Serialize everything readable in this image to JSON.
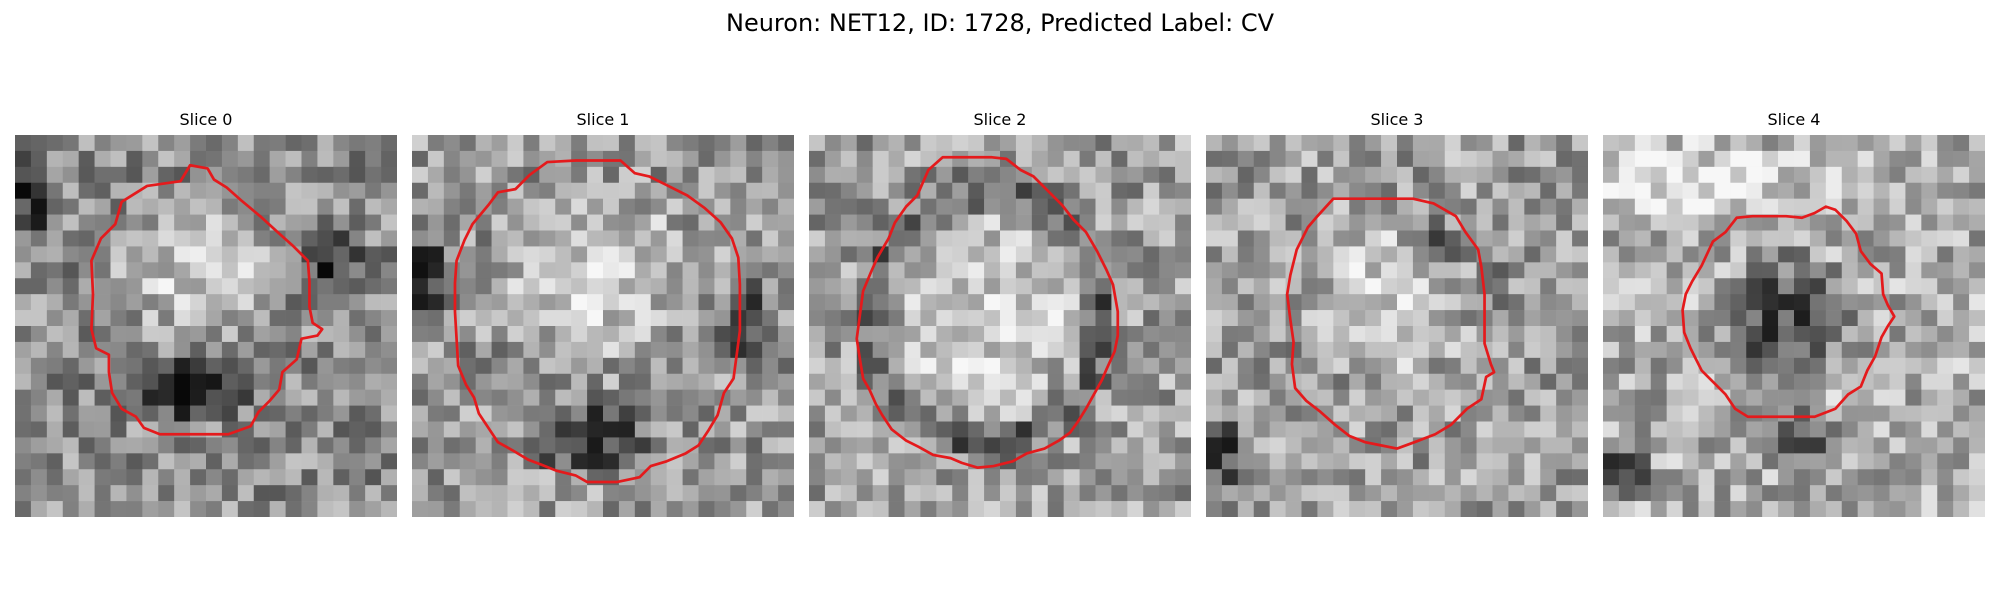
{
  "figure": {
    "title": "Neuron: NET12, ID: 1728, Predicted Label: CV",
    "contour_color": "#e41a1c",
    "panels": [
      {
        "title": "Slice 0",
        "contour": [
          [
            11,
            1.9
          ],
          [
            10.4,
            2.9
          ],
          [
            8.3,
            3.2
          ],
          [
            6.7,
            4.2
          ],
          [
            6.3,
            5.6
          ],
          [
            5.4,
            6.5
          ],
          [
            4.8,
            7.9
          ],
          [
            4.9,
            10.0
          ],
          [
            4.8,
            12.2
          ],
          [
            5.1,
            13.4
          ],
          [
            5.9,
            13.8
          ],
          [
            5.9,
            14.9
          ],
          [
            6.1,
            16.2
          ],
          [
            6.7,
            17.2
          ],
          [
            7.6,
            17.7
          ],
          [
            8.1,
            18.4
          ],
          [
            9.1,
            18.8
          ],
          [
            13.4,
            18.8
          ],
          [
            14.8,
            18.3
          ],
          [
            15.3,
            17.4
          ],
          [
            16.0,
            16.7
          ],
          [
            16.6,
            16.0
          ],
          [
            16.8,
            14.9
          ],
          [
            17.7,
            14.1
          ],
          [
            18.0,
            12.8
          ],
          [
            19.0,
            12.6
          ],
          [
            19.3,
            12.2
          ],
          [
            18.7,
            11.8
          ],
          [
            18.5,
            10.8
          ],
          [
            18.5,
            9.2
          ],
          [
            18.4,
            7.9
          ],
          [
            17.5,
            7.0
          ],
          [
            16.5,
            6.1
          ],
          [
            15.4,
            5.1
          ],
          [
            14.2,
            4.1
          ],
          [
            13.3,
            3.3
          ],
          [
            12.5,
            2.8
          ],
          [
            12.1,
            2.1
          ]
        ]
      },
      {
        "title": "Slice 1",
        "contour": [
          [
            6.5,
            3.4
          ],
          [
            7.4,
            2.5
          ],
          [
            8.5,
            1.7
          ],
          [
            10.3,
            1.6
          ],
          [
            11.9,
            1.6
          ],
          [
            13.1,
            1.6
          ],
          [
            14.0,
            2.4
          ],
          [
            14.9,
            2.6
          ],
          [
            15.9,
            3.1
          ],
          [
            17.3,
            3.8
          ],
          [
            18.4,
            4.6
          ],
          [
            19.4,
            5.5
          ],
          [
            20.1,
            6.5
          ],
          [
            20.5,
            7.7
          ],
          [
            20.6,
            9.4
          ],
          [
            20.6,
            11.3
          ],
          [
            20.6,
            12.3
          ],
          [
            20.4,
            13.8
          ],
          [
            20.2,
            15.3
          ],
          [
            19.6,
            16.2
          ],
          [
            19.2,
            17.6
          ],
          [
            18.6,
            18.6
          ],
          [
            18.0,
            19.5
          ],
          [
            17.2,
            20.0
          ],
          [
            16.0,
            20.5
          ],
          [
            15.0,
            20.8
          ],
          [
            14.3,
            21.5
          ],
          [
            12.9,
            21.8
          ],
          [
            11.0,
            21.8
          ],
          [
            10.3,
            21.4
          ],
          [
            9.1,
            21.1
          ],
          [
            8.1,
            20.7
          ],
          [
            7.3,
            20.4
          ],
          [
            6.3,
            19.8
          ],
          [
            5.4,
            19.3
          ],
          [
            4.8,
            18.4
          ],
          [
            4.2,
            17.5
          ],
          [
            3.9,
            16.5
          ],
          [
            3.4,
            15.7
          ],
          [
            2.9,
            14.5
          ],
          [
            2.8,
            12.8
          ],
          [
            2.7,
            11.1
          ],
          [
            2.7,
            9.3
          ],
          [
            2.8,
            7.9
          ],
          [
            3.3,
            6.6
          ],
          [
            3.8,
            5.6
          ],
          [
            4.8,
            4.4
          ],
          [
            5.4,
            3.6
          ]
        ]
      },
      {
        "title": "Slice 2",
        "contour": [
          [
            7.5,
            2.2
          ],
          [
            8.4,
            1.4
          ],
          [
            9.5,
            1.4
          ],
          [
            10.5,
            1.4
          ],
          [
            11.5,
            1.4
          ],
          [
            12.4,
            1.5
          ],
          [
            13.3,
            2.2
          ],
          [
            14.1,
            2.6
          ],
          [
            15.0,
            3.5
          ],
          [
            15.9,
            4.4
          ],
          [
            16.6,
            5.3
          ],
          [
            17.4,
            6.1
          ],
          [
            18.1,
            7.3
          ],
          [
            18.7,
            8.5
          ],
          [
            19.1,
            9.4
          ],
          [
            19.4,
            11.1
          ],
          [
            19.4,
            12.6
          ],
          [
            19.2,
            13.6
          ],
          [
            18.7,
            14.7
          ],
          [
            18.4,
            15.4
          ],
          [
            17.9,
            16.3
          ],
          [
            17.4,
            17.2
          ],
          [
            16.9,
            18.0
          ],
          [
            16.4,
            18.7
          ],
          [
            15.7,
            19.2
          ],
          [
            14.8,
            19.7
          ],
          [
            13.7,
            20.0
          ],
          [
            12.8,
            20.5
          ],
          [
            11.6,
            20.8
          ],
          [
            10.6,
            20.9
          ],
          [
            9.6,
            20.6
          ],
          [
            8.9,
            20.3
          ],
          [
            7.8,
            20.1
          ],
          [
            6.9,
            19.6
          ],
          [
            6.1,
            19.2
          ],
          [
            5.2,
            18.5
          ],
          [
            4.6,
            17.6
          ],
          [
            4.2,
            16.9
          ],
          [
            3.8,
            16.0
          ],
          [
            3.4,
            15.3
          ],
          [
            3.2,
            14.1
          ],
          [
            3.0,
            12.8
          ],
          [
            3.2,
            11.3
          ],
          [
            3.4,
            9.8
          ],
          [
            3.9,
            8.6
          ],
          [
            4.3,
            7.7
          ],
          [
            5.0,
            6.5
          ],
          [
            5.4,
            5.5
          ],
          [
            6.1,
            4.5
          ],
          [
            6.8,
            3.8
          ]
        ]
      },
      {
        "title": "Slice 3",
        "contour": [
          [
            8.0,
            4.0
          ],
          [
            10.5,
            4.0
          ],
          [
            13.0,
            4.0
          ],
          [
            14.3,
            4.3
          ],
          [
            15.7,
            5.1
          ],
          [
            16.3,
            6.1
          ],
          [
            17.1,
            7.2
          ],
          [
            17.3,
            8.3
          ],
          [
            17.5,
            10.0
          ],
          [
            17.5,
            11.6
          ],
          [
            17.5,
            13.1
          ],
          [
            17.9,
            14.4
          ],
          [
            18.1,
            14.9
          ],
          [
            17.6,
            15.2
          ],
          [
            17.3,
            16.6
          ],
          [
            16.4,
            17.2
          ],
          [
            15.4,
            18.2
          ],
          [
            14.4,
            18.8
          ],
          [
            13.1,
            19.3
          ],
          [
            12.0,
            19.7
          ],
          [
            11.0,
            19.5
          ],
          [
            10.0,
            19.3
          ],
          [
            9.0,
            18.9
          ],
          [
            8.1,
            18.2
          ],
          [
            7.2,
            17.4
          ],
          [
            6.3,
            16.7
          ],
          [
            5.6,
            15.9
          ],
          [
            5.4,
            14.4
          ],
          [
            5.5,
            13.0
          ],
          [
            5.3,
            11.6
          ],
          [
            5.1,
            10.0
          ],
          [
            5.3,
            8.8
          ],
          [
            5.7,
            7.2
          ],
          [
            6.4,
            5.8
          ],
          [
            7.0,
            5.1
          ]
        ]
      },
      {
        "title": "Slice 4",
        "contour": [
          [
            10.3,
            5.1
          ],
          [
            11.5,
            5.1
          ],
          [
            12.5,
            5.2
          ],
          [
            13.3,
            4.9
          ],
          [
            14.0,
            4.5
          ],
          [
            14.6,
            4.7
          ],
          [
            15.3,
            5.4
          ],
          [
            15.9,
            6.2
          ],
          [
            16.2,
            7.3
          ],
          [
            16.8,
            8.1
          ],
          [
            17.5,
            8.7
          ],
          [
            17.6,
            10.0
          ],
          [
            17.9,
            10.7
          ],
          [
            18.3,
            11.4
          ],
          [
            17.9,
            12.0
          ],
          [
            17.5,
            12.7
          ],
          [
            17.1,
            13.9
          ],
          [
            16.6,
            14.8
          ],
          [
            16.2,
            15.8
          ],
          [
            15.4,
            16.3
          ],
          [
            14.6,
            17.2
          ],
          [
            13.3,
            17.7
          ],
          [
            11.9,
            17.7
          ],
          [
            10.5,
            17.7
          ],
          [
            9.1,
            17.7
          ],
          [
            8.3,
            17.2
          ],
          [
            7.7,
            16.3
          ],
          [
            6.9,
            15.5
          ],
          [
            6.2,
            14.8
          ],
          [
            5.8,
            14.0
          ],
          [
            5.5,
            13.4
          ],
          [
            5.1,
            12.4
          ],
          [
            5.0,
            11.0
          ],
          [
            5.2,
            10.0
          ],
          [
            5.6,
            9.2
          ],
          [
            6.2,
            8.2
          ],
          [
            6.9,
            6.7
          ],
          [
            7.7,
            6.1
          ],
          [
            8.4,
            5.2
          ],
          [
            9.4,
            5.1
          ]
        ]
      }
    ]
  }
}
